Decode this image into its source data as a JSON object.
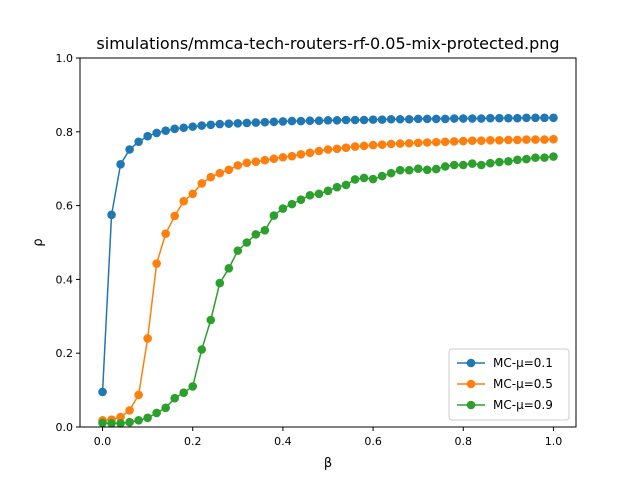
{
  "chart_data": {
    "type": "line",
    "title": "simulations/mmca-tech-routers-rf-0.05-mix-protected.png",
    "xlabel": "β",
    "ylabel": "ρ",
    "xlim": [
      -0.05,
      1.05
    ],
    "ylim": [
      0.0,
      1.0
    ],
    "xticks": [
      0.0,
      0.2,
      0.4,
      0.6,
      0.8,
      1.0
    ],
    "xtick_labels": [
      "0.0",
      "0.2",
      "0.4",
      "0.6",
      "0.8",
      "1.0"
    ],
    "yticks": [
      0.0,
      0.2,
      0.4,
      0.6,
      0.8,
      1.0
    ],
    "ytick_labels": [
      "0.0",
      "0.2",
      "0.4",
      "0.6",
      "0.8",
      "1.0"
    ],
    "grid": false,
    "legend_position": "lower-right",
    "x": [
      0.0,
      0.02,
      0.04,
      0.06,
      0.08,
      0.1,
      0.12,
      0.14,
      0.16,
      0.18,
      0.2,
      0.22,
      0.24,
      0.26,
      0.28,
      0.3,
      0.32,
      0.34,
      0.36,
      0.38,
      0.4,
      0.42,
      0.44,
      0.46,
      0.48,
      0.5,
      0.52,
      0.54,
      0.56,
      0.58,
      0.6,
      0.62,
      0.64,
      0.66,
      0.68,
      0.7,
      0.72,
      0.74,
      0.76,
      0.78,
      0.8,
      0.82,
      0.84,
      0.86,
      0.88,
      0.9,
      0.92,
      0.94,
      0.96,
      0.98,
      1.0
    ],
    "series": [
      {
        "name": "MC-μ=0.1",
        "color": "#1f77b4",
        "values": [
          0.095,
          0.575,
          0.712,
          0.752,
          0.773,
          0.788,
          0.797,
          0.803,
          0.808,
          0.811,
          0.814,
          0.817,
          0.819,
          0.821,
          0.822,
          0.823,
          0.824,
          0.825,
          0.826,
          0.827,
          0.828,
          0.829,
          0.829,
          0.83,
          0.83,
          0.831,
          0.831,
          0.832,
          0.832,
          0.832,
          0.833,
          0.833,
          0.834,
          0.834,
          0.834,
          0.835,
          0.835,
          0.835,
          0.835,
          0.836,
          0.836,
          0.836,
          0.836,
          0.837,
          0.837,
          0.837,
          0.837,
          0.838,
          0.838,
          0.838,
          0.838
        ]
      },
      {
        "name": "MC-μ=0.5",
        "color": "#ff7f0e",
        "values": [
          0.018,
          0.02,
          0.027,
          0.045,
          0.087,
          0.24,
          0.443,
          0.524,
          0.572,
          0.612,
          0.632,
          0.66,
          0.677,
          0.688,
          0.697,
          0.709,
          0.716,
          0.719,
          0.723,
          0.727,
          0.731,
          0.734,
          0.739,
          0.743,
          0.748,
          0.752,
          0.754,
          0.757,
          0.76,
          0.762,
          0.764,
          0.765,
          0.767,
          0.768,
          0.769,
          0.77,
          0.771,
          0.772,
          0.773,
          0.774,
          0.775,
          0.776,
          0.776,
          0.777,
          0.777,
          0.778,
          0.778,
          0.779,
          0.779,
          0.779,
          0.78
        ]
      },
      {
        "name": "MC-μ=0.9",
        "color": "#2ca02c",
        "values": [
          0.011,
          0.01,
          0.01,
          0.013,
          0.018,
          0.025,
          0.038,
          0.052,
          0.078,
          0.093,
          0.11,
          0.21,
          0.29,
          0.39,
          0.43,
          0.478,
          0.5,
          0.522,
          0.533,
          0.573,
          0.592,
          0.604,
          0.616,
          0.628,
          0.632,
          0.64,
          0.65,
          0.656,
          0.671,
          0.675,
          0.672,
          0.68,
          0.688,
          0.696,
          0.696,
          0.7,
          0.697,
          0.699,
          0.706,
          0.71,
          0.71,
          0.714,
          0.71,
          0.715,
          0.718,
          0.72,
          0.724,
          0.726,
          0.73,
          0.73,
          0.733
        ]
      }
    ]
  }
}
